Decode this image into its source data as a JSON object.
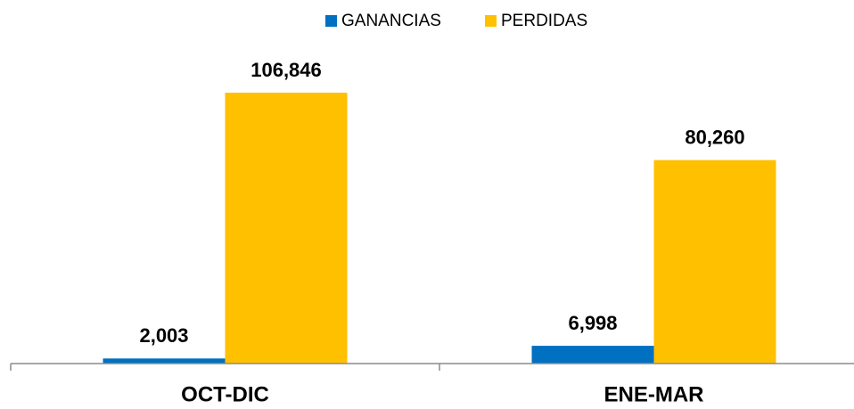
{
  "chart_data": {
    "type": "bar",
    "categories": [
      "OCT-DIC",
      "ENE-MAR"
    ],
    "series": [
      {
        "name": "GANANCIAS",
        "color": "#0070c0",
        "values": [
          2003,
          6998
        ],
        "value_labels": [
          "2,003",
          "6,998"
        ]
      },
      {
        "name": "PERDIDAS",
        "color": "#ffc000",
        "values": [
          106846,
          80260
        ],
        "value_labels": [
          "106,846",
          "80,260"
        ]
      }
    ],
    "legend": "top"
  }
}
